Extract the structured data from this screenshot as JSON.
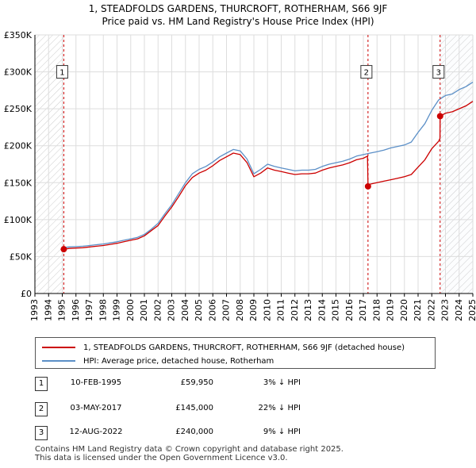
{
  "title": {
    "line1": "1, STEADFOLDS GARDENS, THURCROFT, ROTHERHAM, S66 9JF",
    "line2": "Price paid vs. HM Land Registry's House Price Index (HPI)"
  },
  "legend": {
    "property_label": "1, STEADFOLDS GARDENS, THURCROFT, ROTHERHAM, S66 9JF (detached house)",
    "hpi_label": "HPI: Average price, detached house, Rotherham"
  },
  "transactions": [
    {
      "num": "1",
      "date": "10-FEB-1995",
      "price": "£59,950",
      "hpi": "3% ↓ HPI"
    },
    {
      "num": "2",
      "date": "03-MAY-2017",
      "price": "£145,000",
      "hpi": "22% ↓ HPI"
    },
    {
      "num": "3",
      "date": "12-AUG-2022",
      "price": "£240,000",
      "hpi": "9% ↓ HPI"
    }
  ],
  "footer": {
    "line1": "Contains HM Land Registry data © Crown copyright and database right 2025.",
    "line2": "This data is licensed under the Open Government Licence v3.0."
  },
  "colors": {
    "property": "#cc0000",
    "hpi": "#5b8fc7",
    "future_band": "#dde6f2",
    "marker_line": "#cc0000"
  },
  "chart_data": {
    "type": "line",
    "xlim": [
      1993,
      2025
    ],
    "ylim": [
      0,
      350000
    ],
    "y_ticks": [
      0,
      50000,
      100000,
      150000,
      200000,
      250000,
      300000,
      350000
    ],
    "y_tick_labels": [
      "£0",
      "£50K",
      "£100K",
      "£150K",
      "£200K",
      "£250K",
      "£300K",
      "£350K"
    ],
    "x_ticks": [
      1993,
      1994,
      1995,
      1996,
      1997,
      1998,
      1999,
      2000,
      2001,
      2002,
      2003,
      2004,
      2005,
      2006,
      2007,
      2008,
      2009,
      2010,
      2011,
      2012,
      2013,
      2014,
      2015,
      2016,
      2017,
      2018,
      2019,
      2020,
      2021,
      2022,
      2023,
      2024,
      2025
    ],
    "hatched_ranges": [
      [
        1993,
        1995.11
      ],
      [
        2022.61,
        2025
      ]
    ],
    "vlines": [
      1995.11,
      2017.34,
      2022.61
    ],
    "markers": [
      {
        "label": "1",
        "x": 1995.11,
        "y": 59950,
        "box_y": 300000
      },
      {
        "label": "2",
        "x": 2017.34,
        "y": 145000,
        "box_y": 300000
      },
      {
        "label": "3",
        "x": 2022.61,
        "y": 240000,
        "box_y": 300000
      }
    ],
    "series": [
      {
        "name": "HPI: Average price, detached house, Rotherham",
        "x": [
          1995.0,
          1995.5,
          1996.0,
          1996.5,
          1997.0,
          1997.5,
          1998.0,
          1998.5,
          1999.0,
          1999.5,
          2000.0,
          2000.5,
          2001.0,
          2001.5,
          2002.0,
          2002.5,
          2003.0,
          2003.5,
          2004.0,
          2004.5,
          2005.0,
          2005.5,
          2006.0,
          2006.5,
          2007.0,
          2007.5,
          2008.0,
          2008.5,
          2009.0,
          2009.5,
          2010.0,
          2010.5,
          2011.0,
          2011.5,
          2012.0,
          2012.5,
          2013.0,
          2013.5,
          2014.0,
          2014.5,
          2015.0,
          2015.5,
          2016.0,
          2016.5,
          2017.0,
          2017.5,
          2018.0,
          2018.5,
          2019.0,
          2019.5,
          2020.0,
          2020.5,
          2021.0,
          2021.5,
          2022.0,
          2022.5,
          2023.0,
          2023.5,
          2024.0,
          2024.5,
          2025.0
        ],
        "values": [
          62000,
          63000,
          63500,
          64000,
          65000,
          66000,
          67000,
          68500,
          70000,
          72000,
          74000,
          76000,
          80000,
          87000,
          95000,
          108000,
          120000,
          135000,
          150000,
          162000,
          168000,
          172000,
          178000,
          185000,
          190000,
          195000,
          193000,
          182000,
          162000,
          168000,
          175000,
          172000,
          170000,
          168000,
          166000,
          167000,
          167000,
          168000,
          172000,
          175000,
          177000,
          179000,
          182000,
          186000,
          188000,
          190000,
          192000,
          194000,
          197000,
          199000,
          201000,
          205000,
          218000,
          230000,
          248000,
          262000,
          268000,
          270000,
          276000,
          280000,
          286000
        ]
      },
      {
        "name": "1, STEADFOLDS GARDENS, THURCROFT, ROTHERHAM, S66 9JF (detached house)",
        "x": [
          1995.11,
          1995.5,
          1996.0,
          1996.5,
          1997.0,
          1997.5,
          1998.0,
          1998.5,
          1999.0,
          1999.5,
          2000.0,
          2000.5,
          2001.0,
          2001.5,
          2002.0,
          2002.5,
          2003.0,
          2003.5,
          2004.0,
          2004.5,
          2005.0,
          2005.5,
          2006.0,
          2006.5,
          2007.0,
          2007.5,
          2008.0,
          2008.5,
          2009.0,
          2009.5,
          2010.0,
          2010.5,
          2011.0,
          2011.5,
          2012.0,
          2012.5,
          2013.0,
          2013.5,
          2014.0,
          2014.5,
          2015.0,
          2015.5,
          2016.0,
          2016.5,
          2017.0,
          2017.3,
          2017.34,
          2017.5,
          2018.0,
          2018.5,
          2019.0,
          2019.5,
          2020.0,
          2020.5,
          2021.0,
          2021.5,
          2022.0,
          2022.5,
          2022.6,
          2022.61,
          2023.0,
          2023.5,
          2024.0,
          2024.5,
          2025.0
        ],
        "values": [
          59950,
          61000,
          61500,
          62000,
          63000,
          64000,
          65000,
          66500,
          68000,
          70000,
          72000,
          74000,
          78000,
          85000,
          92000,
          105000,
          117000,
          131000,
          146000,
          157000,
          163000,
          167000,
          173000,
          180000,
          185000,
          190000,
          188000,
          177000,
          158000,
          163000,
          170000,
          167000,
          165000,
          163000,
          161000,
          162000,
          162000,
          163000,
          167000,
          170000,
          172000,
          174000,
          177000,
          181000,
          183000,
          186000,
          145000,
          148000,
          150000,
          152000,
          154000,
          156000,
          158000,
          161000,
          171000,
          181000,
          196000,
          206000,
          210000,
          240000,
          244000,
          246000,
          250000,
          254000,
          260000
        ]
      }
    ]
  }
}
